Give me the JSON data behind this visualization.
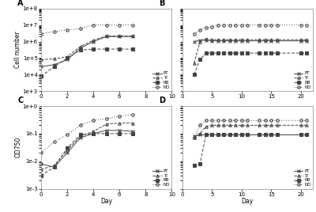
{
  "panel_A": {
    "label": "A",
    "PT_x": [
      0,
      1,
      2,
      3,
      4,
      5,
      6,
      7
    ],
    "PT_y": [
      30000.0,
      40000.0,
      80000.0,
      400000.0,
      1000000.0,
      2000000.0,
      2000000.0,
      2000000.0
    ],
    "TI_x": [
      0,
      1,
      2,
      3,
      4,
      5,
      6,
      7
    ],
    "TI_y": [
      80000.0,
      90000.0,
      120000.0,
      500000.0,
      1200000.0,
      2200000.0,
      2200000.0,
      2200000.0
    ],
    "RB_x": [
      0,
      1,
      2,
      3,
      4,
      5,
      6,
      7
    ],
    "RB_y": [
      8000.0,
      30000.0,
      100000.0,
      300000.0,
      350000.0,
      350000.0,
      350000.0,
      350000.0
    ],
    "NO_x": [
      0,
      1,
      2,
      3,
      4,
      5,
      6,
      7
    ],
    "NO_y": [
      3000000.0,
      4000000.0,
      5000000.0,
      6000000.0,
      10000000.0,
      10000000.0,
      10000000.0,
      10000000.0
    ],
    "xlim": [
      0,
      10
    ],
    "ylim": [
      1000.0,
      100000000.0
    ],
    "ylabel": "Cell number",
    "xlabel": "",
    "xticks": [
      0,
      2,
      4,
      6,
      8,
      10
    ]
  },
  "panel_B": {
    "label": "B",
    "PT_x": [
      2,
      3,
      4,
      5,
      6,
      7,
      8,
      9,
      10,
      11,
      13,
      14,
      15,
      16,
      20,
      21
    ],
    "PT_y": [
      1000000.0,
      1200000.0,
      1200000.0,
      1100000.0,
      1100000.0,
      1100000.0,
      1100000.0,
      1100000.0,
      1100000.0,
      1100000.0,
      1100000.0,
      1100000.0,
      1100000.0,
      1100000.0,
      1100000.0,
      1100000.0
    ],
    "TI_x": [
      2,
      3,
      4,
      5,
      6,
      7,
      8,
      9,
      10,
      11,
      13,
      14,
      15,
      16,
      20,
      21
    ],
    "TI_y": [
      50000.0,
      1000000.0,
      1500000.0,
      1300000.0,
      1300000.0,
      1300000.0,
      1300000.0,
      1300000.0,
      1300000.0,
      1300000.0,
      1300000.0,
      1300000.0,
      1300000.0,
      1300000.0,
      1300000.0,
      1300000.0
    ],
    "RB_x": [
      2,
      3,
      4,
      5,
      6,
      7,
      8,
      9,
      10,
      11,
      13,
      14,
      15,
      16,
      20,
      21
    ],
    "RB_y": [
      10000.0,
      80000.0,
      200000.0,
      200000.0,
      200000.0,
      200000.0,
      200000.0,
      200000.0,
      200000.0,
      200000.0,
      200000.0,
      200000.0,
      200000.0,
      200000.0,
      200000.0,
      200000.0
    ],
    "NO_x": [
      2,
      3,
      4,
      5,
      6,
      7,
      8,
      9,
      10,
      11,
      13,
      14,
      15,
      16,
      20,
      21
    ],
    "NO_y": [
      3000000.0,
      5000000.0,
      7000000.0,
      8000000.0,
      10000000.0,
      10000000.0,
      10000000.0,
      10000000.0,
      10000000.0,
      10000000.0,
      10000000.0,
      10000000.0,
      10000000.0,
      10000000.0,
      10000000.0,
      10000000.0
    ],
    "xlim": [
      0,
      22
    ],
    "ylim": [
      1000.0,
      100000000.0
    ],
    "ylabel": "",
    "xlabel": "",
    "xticks": [
      0,
      5,
      10,
      15,
      20
    ]
  },
  "panel_C": {
    "label": "C",
    "PT_x": [
      0,
      1,
      2,
      3,
      4,
      5,
      6,
      7
    ],
    "PT_y": [
      0.008,
      0.006,
      0.02,
      0.07,
      0.1,
      0.13,
      0.13,
      0.12
    ],
    "TI_x": [
      0,
      1,
      2,
      3,
      4,
      5,
      6,
      7
    ],
    "TI_y": [
      0.005,
      0.007,
      0.025,
      0.08,
      0.12,
      0.22,
      0.24,
      0.24
    ],
    "RB_x": [
      0,
      1,
      2,
      3,
      4,
      5,
      6,
      7
    ],
    "RB_y": [
      0.003,
      0.006,
      0.03,
      0.09,
      0.1,
      0.1,
      0.1,
      0.1
    ],
    "NO_x": [
      0,
      1,
      2,
      3,
      4,
      5,
      6,
      7
    ],
    "NO_y": [
      0.02,
      0.05,
      0.09,
      0.2,
      0.3,
      0.35,
      0.42,
      0.5
    ],
    "xlim": [
      0,
      10
    ],
    "ylim": [
      0.001,
      1
    ],
    "ylabel": "OD750",
    "xlabel": "Day",
    "xticks": [
      0,
      2,
      4,
      6,
      8,
      10
    ]
  },
  "panel_D": {
    "label": "D",
    "PT_x": [
      2,
      3,
      4,
      5,
      6,
      7,
      8,
      9,
      10,
      11,
      13,
      14,
      15,
      16,
      20,
      21
    ],
    "PT_y": [
      0.08,
      0.09,
      0.09,
      0.09,
      0.09,
      0.09,
      0.09,
      0.09,
      0.09,
      0.09,
      0.09,
      0.09,
      0.09,
      0.09,
      0.09,
      0.09
    ],
    "TI_x": [
      2,
      3,
      4,
      5,
      6,
      7,
      8,
      9,
      10,
      11,
      13,
      14,
      15,
      16,
      20,
      21
    ],
    "TI_y": [
      0.07,
      0.1,
      0.18,
      0.2,
      0.2,
      0.2,
      0.2,
      0.2,
      0.2,
      0.2,
      0.2,
      0.2,
      0.2,
      0.2,
      0.2,
      0.2
    ],
    "RB_x": [
      2,
      3,
      4,
      5,
      6,
      7,
      8,
      9,
      10,
      11,
      13,
      14,
      15,
      16,
      20,
      21
    ],
    "RB_y": [
      0.007,
      0.008,
      0.09,
      0.09,
      0.09,
      0.09,
      0.09,
      0.09,
      0.09,
      0.09,
      0.09,
      0.09,
      0.09,
      0.09,
      0.09,
      0.09
    ],
    "NO_x": [
      2,
      3,
      4,
      5,
      6,
      7,
      8,
      9,
      10,
      11,
      13,
      14,
      15,
      16,
      20,
      21
    ],
    "NO_y": [
      0.07,
      0.2,
      0.3,
      0.3,
      0.3,
      0.3,
      0.3,
      0.3,
      0.3,
      0.3,
      0.3,
      0.3,
      0.3,
      0.3,
      0.3,
      0.3
    ],
    "xlim": [
      0,
      22
    ],
    "ylim": [
      0.001,
      1
    ],
    "ylabel": "",
    "xlabel": "Day",
    "xticks": [
      0,
      5,
      10,
      15,
      20
    ]
  },
  "line_color": "#444444",
  "PT_marker": "x",
  "TI_marker": "^",
  "RB_marker": "s",
  "NO_marker": "o",
  "PT_ls": "-",
  "TI_ls": "--",
  "RB_ls": "--",
  "NO_ls": "--",
  "ms": 2.5,
  "lw": 0.7
}
